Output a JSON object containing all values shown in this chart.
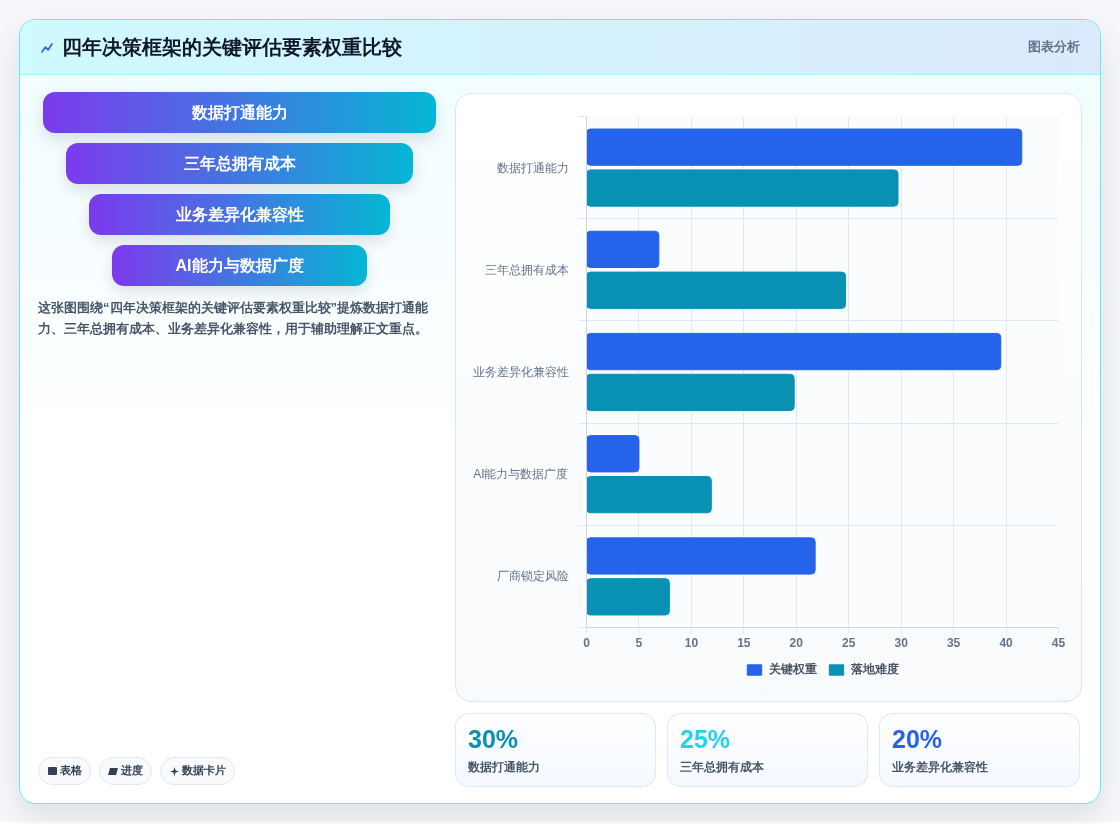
{
  "chart_data": [
    {
      "type": "other",
      "title": "四年决策框架的关键评估要素权重比较",
      "categories": [
        "数据打通能力",
        "三年总拥有成本",
        "业务差异化兼容性",
        "AI能力与数据广度"
      ],
      "annotations": [
        "这张图围绕“四年决策框架的关键评估要素权重比较”提炼数据打通能力、三年总拥有成本、业务差异化兼容性，用于辅助理解正文重点。",
        "表格",
        "进度",
        "数据卡片"
      ]
    },
    {
      "type": "bar",
      "subtitle": "图表分析",
      "orientation": "horizontal",
      "categories": [
        "数据打通能力",
        "三年总拥有成本",
        "业务差异化兼容性",
        "AI能力与数据广度",
        "厂商锁定风险"
      ],
      "series": [
        {
          "name": "关键权重",
          "color": "#2563eb",
          "values": [
            41.5,
            6.9,
            39.5,
            5.0,
            21.8
          ]
        },
        {
          "name": "落地难度",
          "color": "#0891b2",
          "values": [
            29.7,
            24.7,
            19.8,
            11.9,
            7.9
          ]
        }
      ],
      "xlim": [
        0,
        45
      ],
      "xticks": [
        0,
        5,
        10,
        15,
        20,
        25,
        30,
        35,
        40,
        45
      ],
      "grid": true,
      "legend": "bottom"
    },
    {
      "type": "other",
      "categories": [
        "数据打通能力",
        "三年总拥有成本",
        "业务差异化兼容性"
      ],
      "values": [
        30,
        25,
        20
      ],
      "value_labels": [
        "30%",
        "25%",
        "20%"
      ],
      "colors": [
        "#0891b2",
        "#22d3ee",
        "#2563eb"
      ]
    }
  ]
}
